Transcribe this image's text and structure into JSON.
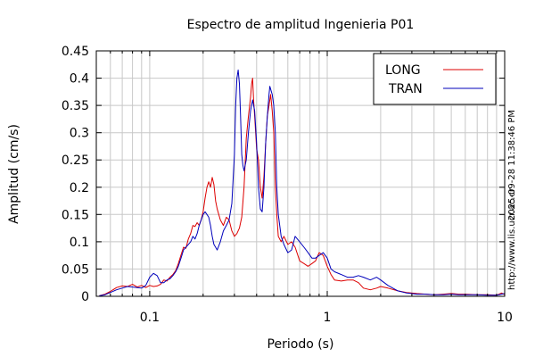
{
  "chart_data": {
    "type": "line",
    "title": "Espectro de amplitud Ingenieria P01",
    "xlabel": "Periodo (s)",
    "ylabel": "Amplitud (cm/s)",
    "xscale": "log",
    "xlim": [
      0.05,
      10
    ],
    "ylim": [
      0,
      0.45
    ],
    "xticks": [
      {
        "value": 0.1,
        "label": "0.1"
      },
      {
        "value": 1,
        "label": "1"
      },
      {
        "value": 10,
        "label": "10"
      }
    ],
    "yticks": [
      {
        "value": 0,
        "label": "0"
      },
      {
        "value": 0.05,
        "label": "0.05"
      },
      {
        "value": 0.1,
        "label": "0.1"
      },
      {
        "value": 0.15,
        "label": "0.15"
      },
      {
        "value": 0.2,
        "label": "0.2"
      },
      {
        "value": 0.25,
        "label": "0.25"
      },
      {
        "value": 0.3,
        "label": "0.3"
      },
      {
        "value": 0.35,
        "label": "0.35"
      },
      {
        "value": 0.4,
        "label": "0.4"
      },
      {
        "value": 0.45,
        "label": "0.45"
      }
    ],
    "grid": true,
    "legend_position": "top-right",
    "series": [
      {
        "name": "LONG",
        "color": "#dd0000",
        "points": [
          [
            0.052,
            0.001
          ],
          [
            0.056,
            0.004
          ],
          [
            0.06,
            0.009
          ],
          [
            0.065,
            0.016
          ],
          [
            0.07,
            0.019
          ],
          [
            0.075,
            0.018
          ],
          [
            0.08,
            0.022
          ],
          [
            0.085,
            0.017
          ],
          [
            0.09,
            0.02
          ],
          [
            0.095,
            0.016
          ],
          [
            0.1,
            0.02
          ],
          [
            0.105,
            0.018
          ],
          [
            0.11,
            0.019
          ],
          [
            0.115,
            0.022
          ],
          [
            0.12,
            0.03
          ],
          [
            0.125,
            0.028
          ],
          [
            0.13,
            0.035
          ],
          [
            0.135,
            0.04
          ],
          [
            0.14,
            0.047
          ],
          [
            0.145,
            0.06
          ],
          [
            0.15,
            0.076
          ],
          [
            0.155,
            0.09
          ],
          [
            0.16,
            0.088
          ],
          [
            0.165,
            0.105
          ],
          [
            0.17,
            0.115
          ],
          [
            0.175,
            0.13
          ],
          [
            0.18,
            0.128
          ],
          [
            0.185,
            0.135
          ],
          [
            0.19,
            0.13
          ],
          [
            0.195,
            0.14
          ],
          [
            0.2,
            0.155
          ],
          [
            0.205,
            0.18
          ],
          [
            0.21,
            0.2
          ],
          [
            0.215,
            0.21
          ],
          [
            0.22,
            0.2
          ],
          [
            0.225,
            0.218
          ],
          [
            0.23,
            0.205
          ],
          [
            0.235,
            0.175
          ],
          [
            0.24,
            0.16
          ],
          [
            0.25,
            0.14
          ],
          [
            0.26,
            0.13
          ],
          [
            0.27,
            0.145
          ],
          [
            0.28,
            0.14
          ],
          [
            0.29,
            0.12
          ],
          [
            0.3,
            0.11
          ],
          [
            0.31,
            0.115
          ],
          [
            0.32,
            0.125
          ],
          [
            0.33,
            0.145
          ],
          [
            0.34,
            0.2
          ],
          [
            0.35,
            0.29
          ],
          [
            0.36,
            0.33
          ],
          [
            0.37,
            0.365
          ],
          [
            0.375,
            0.39
          ],
          [
            0.38,
            0.4
          ],
          [
            0.385,
            0.36
          ],
          [
            0.39,
            0.33
          ],
          [
            0.4,
            0.27
          ],
          [
            0.41,
            0.25
          ],
          [
            0.42,
            0.2
          ],
          [
            0.43,
            0.18
          ],
          [
            0.44,
            0.22
          ],
          [
            0.45,
            0.28
          ],
          [
            0.46,
            0.33
          ],
          [
            0.47,
            0.35
          ],
          [
            0.48,
            0.37
          ],
          [
            0.49,
            0.34
          ],
          [
            0.5,
            0.3
          ],
          [
            0.51,
            0.2
          ],
          [
            0.52,
            0.15
          ],
          [
            0.53,
            0.11
          ],
          [
            0.55,
            0.1
          ],
          [
            0.57,
            0.11
          ],
          [
            0.6,
            0.095
          ],
          [
            0.63,
            0.1
          ],
          [
            0.66,
            0.09
          ],
          [
            0.7,
            0.065
          ],
          [
            0.74,
            0.06
          ],
          [
            0.78,
            0.055
          ],
          [
            0.82,
            0.06
          ],
          [
            0.86,
            0.065
          ],
          [
            0.9,
            0.08
          ],
          [
            0.95,
            0.075
          ],
          [
            1.0,
            0.055
          ],
          [
            1.05,
            0.04
          ],
          [
            1.1,
            0.03
          ],
          [
            1.2,
            0.028
          ],
          [
            1.3,
            0.03
          ],
          [
            1.4,
            0.03
          ],
          [
            1.5,
            0.025
          ],
          [
            1.6,
            0.015
          ],
          [
            1.75,
            0.012
          ],
          [
            1.9,
            0.015
          ],
          [
            2.0,
            0.018
          ],
          [
            2.2,
            0.015
          ],
          [
            2.5,
            0.01
          ],
          [
            2.8,
            0.007
          ],
          [
            3.2,
            0.005
          ],
          [
            3.6,
            0.004
          ],
          [
            4.0,
            0.003
          ],
          [
            4.5,
            0.004
          ],
          [
            5.0,
            0.005
          ],
          [
            5.5,
            0.004
          ],
          [
            6.0,
            0.004
          ],
          [
            7.0,
            0.003
          ],
          [
            8.0,
            0.003
          ],
          [
            9.0,
            0.002
          ],
          [
            9.6,
            0.006
          ],
          [
            10.0,
            0.003
          ]
        ]
      },
      {
        "name": "TRAN",
        "color": "#0000bb",
        "points": [
          [
            0.052,
            0.001
          ],
          [
            0.056,
            0.003
          ],
          [
            0.06,
            0.007
          ],
          [
            0.065,
            0.012
          ],
          [
            0.07,
            0.015
          ],
          [
            0.075,
            0.018
          ],
          [
            0.08,
            0.017
          ],
          [
            0.085,
            0.016
          ],
          [
            0.09,
            0.015
          ],
          [
            0.095,
            0.02
          ],
          [
            0.1,
            0.035
          ],
          [
            0.105,
            0.042
          ],
          [
            0.11,
            0.038
          ],
          [
            0.115,
            0.025
          ],
          [
            0.12,
            0.025
          ],
          [
            0.125,
            0.03
          ],
          [
            0.13,
            0.032
          ],
          [
            0.135,
            0.038
          ],
          [
            0.14,
            0.045
          ],
          [
            0.145,
            0.055
          ],
          [
            0.15,
            0.07
          ],
          [
            0.155,
            0.085
          ],
          [
            0.16,
            0.09
          ],
          [
            0.165,
            0.095
          ],
          [
            0.17,
            0.1
          ],
          [
            0.175,
            0.11
          ],
          [
            0.18,
            0.105
          ],
          [
            0.185,
            0.115
          ],
          [
            0.19,
            0.13
          ],
          [
            0.195,
            0.14
          ],
          [
            0.2,
            0.15
          ],
          [
            0.205,
            0.155
          ],
          [
            0.21,
            0.15
          ],
          [
            0.215,
            0.145
          ],
          [
            0.22,
            0.13
          ],
          [
            0.225,
            0.11
          ],
          [
            0.23,
            0.095
          ],
          [
            0.235,
            0.09
          ],
          [
            0.24,
            0.085
          ],
          [
            0.25,
            0.1
          ],
          [
            0.26,
            0.12
          ],
          [
            0.27,
            0.13
          ],
          [
            0.28,
            0.14
          ],
          [
            0.29,
            0.17
          ],
          [
            0.3,
            0.26
          ],
          [
            0.305,
            0.35
          ],
          [
            0.31,
            0.4
          ],
          [
            0.315,
            0.415
          ],
          [
            0.32,
            0.39
          ],
          [
            0.325,
            0.33
          ],
          [
            0.33,
            0.26
          ],
          [
            0.335,
            0.24
          ],
          [
            0.34,
            0.23
          ],
          [
            0.35,
            0.25
          ],
          [
            0.36,
            0.3
          ],
          [
            0.37,
            0.34
          ],
          [
            0.38,
            0.36
          ],
          [
            0.39,
            0.34
          ],
          [
            0.4,
            0.28
          ],
          [
            0.41,
            0.2
          ],
          [
            0.42,
            0.16
          ],
          [
            0.43,
            0.155
          ],
          [
            0.44,
            0.2
          ],
          [
            0.45,
            0.28
          ],
          [
            0.46,
            0.33
          ],
          [
            0.47,
            0.37
          ],
          [
            0.475,
            0.385
          ],
          [
            0.48,
            0.38
          ],
          [
            0.49,
            0.37
          ],
          [
            0.5,
            0.35
          ],
          [
            0.51,
            0.3
          ],
          [
            0.52,
            0.2
          ],
          [
            0.53,
            0.15
          ],
          [
            0.55,
            0.11
          ],
          [
            0.57,
            0.095
          ],
          [
            0.6,
            0.08
          ],
          [
            0.63,
            0.085
          ],
          [
            0.66,
            0.11
          ],
          [
            0.7,
            0.1
          ],
          [
            0.74,
            0.09
          ],
          [
            0.78,
            0.08
          ],
          [
            0.82,
            0.07
          ],
          [
            0.86,
            0.07
          ],
          [
            0.9,
            0.075
          ],
          [
            0.95,
            0.08
          ],
          [
            1.0,
            0.07
          ],
          [
            1.05,
            0.05
          ],
          [
            1.1,
            0.045
          ],
          [
            1.2,
            0.04
          ],
          [
            1.3,
            0.035
          ],
          [
            1.4,
            0.035
          ],
          [
            1.5,
            0.038
          ],
          [
            1.6,
            0.035
          ],
          [
            1.75,
            0.03
          ],
          [
            1.9,
            0.035
          ],
          [
            2.0,
            0.03
          ],
          [
            2.2,
            0.02
          ],
          [
            2.5,
            0.01
          ],
          [
            2.8,
            0.006
          ],
          [
            3.2,
            0.004
          ],
          [
            3.6,
            0.004
          ],
          [
            4.0,
            0.003
          ],
          [
            4.5,
            0.003
          ],
          [
            5.0,
            0.004
          ],
          [
            5.5,
            0.003
          ],
          [
            6.0,
            0.003
          ],
          [
            7.0,
            0.003
          ],
          [
            8.0,
            0.002
          ],
          [
            9.0,
            0.002
          ],
          [
            9.6,
            0.004
          ],
          [
            10.0,
            0.005
          ]
        ]
      }
    ]
  },
  "side": {
    "timestamp": "2025-09-28 11:38:46 PM",
    "url": "http://www.lis.ucr.ac.cr"
  }
}
